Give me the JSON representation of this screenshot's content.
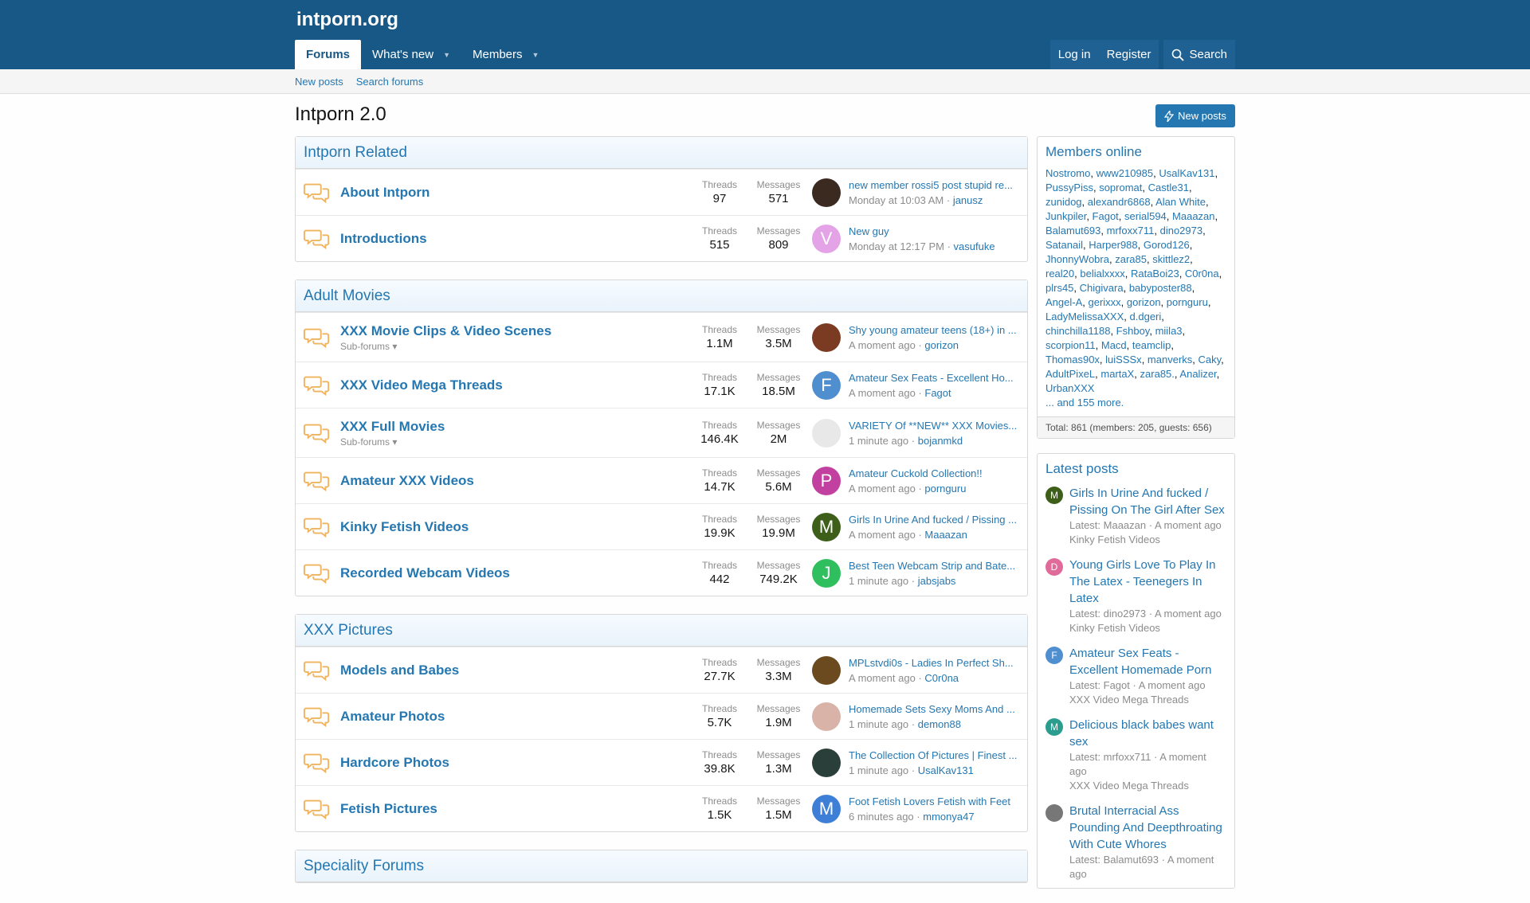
{
  "header": {
    "logo": "intporn.org",
    "nav": [
      {
        "label": "Forums"
      },
      {
        "label": "What's new"
      },
      {
        "label": "Members"
      }
    ],
    "login": "Log in",
    "register": "Register",
    "search": "Search"
  },
  "subnav": {
    "new_posts": "New posts",
    "search_forums": "Search forums"
  },
  "page": {
    "title": "Intporn 2.0",
    "new_posts_button": "New posts"
  },
  "labels": {
    "threads": "Threads",
    "messages": "Messages",
    "subforums": "Sub-forums"
  },
  "categories": [
    {
      "title": "Intporn Related",
      "forums": [
        {
          "title": "About Intporn",
          "threads": "97",
          "messages": "571",
          "last_title": "new member rossi5 post stupid re...",
          "last_time": "Monday at 10:03 AM",
          "last_user": "janusz",
          "avatar_letter": "",
          "avatar_color": "#3b2a20"
        },
        {
          "title": "Introductions",
          "threads": "515",
          "messages": "809",
          "last_title": "New guy",
          "last_time": "Monday at 12:17 PM",
          "last_user": "vasufuke",
          "avatar_letter": "V",
          "avatar_color": "#e4a3e6"
        }
      ]
    },
    {
      "title": "Adult Movies",
      "forums": [
        {
          "title": "XXX Movie Clips & Video Scenes",
          "sub": true,
          "threads": "1.1M",
          "messages": "3.5M",
          "last_title": "Shy young amateur teens (18+) in ...",
          "last_time": "A moment ago",
          "last_user": "gorizon",
          "avatar_letter": "",
          "avatar_color": "#7a3b22"
        },
        {
          "title": "XXX Video Mega Threads",
          "threads": "17.1K",
          "messages": "18.5M",
          "last_title": "Amateur Sex Feats - Excellent Ho...",
          "last_time": "A moment ago",
          "last_user": "Fagot",
          "avatar_letter": "F",
          "avatar_color": "#4f8fcf"
        },
        {
          "title": "XXX Full Movies",
          "sub": true,
          "threads": "146.4K",
          "messages": "2M",
          "last_title": "VARIETY Of **NEW** XXX Movies...",
          "last_time": "1 minute ago",
          "last_user": "bojanmkd",
          "avatar_letter": "",
          "avatar_color": "#e8e8e8"
        },
        {
          "title": "Amateur XXX Videos",
          "threads": "14.7K",
          "messages": "5.6M",
          "last_title": "Amateur Cuckold Collection!!",
          "last_time": "A moment ago",
          "last_user": "pornguru",
          "avatar_letter": "P",
          "avatar_color": "#c2409f"
        },
        {
          "title": "Kinky Fetish Videos",
          "threads": "19.9K",
          "messages": "19.9M",
          "last_title": "Girls In Urine And fucked / Pissing ...",
          "last_time": "A moment ago",
          "last_user": "Maaazan",
          "avatar_letter": "M",
          "avatar_color": "#3e5f1a"
        },
        {
          "title": "Recorded Webcam Videos",
          "threads": "442",
          "messages": "749.2K",
          "last_title": "Best Teen Webcam Strip and Bate...",
          "last_time": "1 minute ago",
          "last_user": "jabsjabs",
          "avatar_letter": "J",
          "avatar_color": "#2fbf5f"
        }
      ]
    },
    {
      "title": "XXX Pictures",
      "forums": [
        {
          "title": "Models and Babes",
          "threads": "27.7K",
          "messages": "3.3M",
          "last_title": "MPLstvdi0s - Ladies In Perfect Sh...",
          "last_time": "A moment ago",
          "last_user": "C0r0na",
          "avatar_letter": "",
          "avatar_color": "#6b4a1f"
        },
        {
          "title": "Amateur Photos",
          "threads": "5.7K",
          "messages": "1.9M",
          "last_title": "Homemade Sets Sexy Moms And ...",
          "last_time": "1 minute ago",
          "last_user": "demon88",
          "avatar_letter": "",
          "avatar_color": "#d9b3a8"
        },
        {
          "title": "Hardcore Photos",
          "threads": "39.8K",
          "messages": "1.3M",
          "last_title": "The Collection Of Pictures | Finest ...",
          "last_time": "1 minute ago",
          "last_user": "UsalKav131",
          "avatar_letter": "",
          "avatar_color": "#2b3f3a"
        },
        {
          "title": "Fetish Pictures",
          "threads": "1.5K",
          "messages": "1.5M",
          "last_title": "Foot Fetish Lovers Fetish with Feet",
          "last_time": "6 minutes ago",
          "last_user": "mmonya47",
          "avatar_letter": "M",
          "avatar_color": "#3d7fd6"
        }
      ]
    },
    {
      "title": "Speciality Forums",
      "forums": []
    }
  ],
  "sidebar": {
    "members_title": "Members online",
    "members": [
      "Nostromo",
      "www210985",
      "UsalKav131",
      "PussyPiss",
      "sopromat",
      "Castle31",
      "zunidog",
      "alexandr6868",
      "Alan White",
      "Junkpiler",
      "Fagot",
      "serial594",
      "Maaazan",
      "Balamut693",
      "mrfoxx711",
      "dino2973",
      "Satanail",
      "Harper988",
      "Gorod126",
      "JhonnyWobra",
      "zara85",
      "skittlez2",
      "real20",
      "belialxxxx",
      "RataBoi23",
      "C0r0na",
      "plrs45",
      "Chigivara",
      "babyposter88",
      "Angel-A",
      "gerixxx",
      "gorizon",
      "pornguru",
      "LadyMelissaXXX",
      "d.dgeri",
      "chinchilla1188",
      "Fshboy",
      "miila3",
      "scorpion11",
      "Macd",
      "teamclip",
      "Thomas90x",
      "luiSSSx",
      "manverks",
      "Caky",
      "AdultPixeL",
      "martaX",
      "zara85.",
      "Analizer",
      "UrbanXXX"
    ],
    "more": "... and 155 more.",
    "total": "Total: 861 (members: 205, guests: 656)",
    "latest_title": "Latest posts",
    "latest": [
      {
        "title": "Girls In Urine And fucked / Pissing On The Girl After Sex",
        "meta": "Latest: Maaazan · A moment ago",
        "forum": "Kinky Fetish Videos",
        "letter": "M",
        "color": "#3e5f1a"
      },
      {
        "title": "Young Girls Love To Play In The Latex - Teenegers In Latex",
        "meta": "Latest: dino2973 · A moment ago",
        "forum": "Kinky Fetish Videos",
        "letter": "D",
        "color": "#e06a9a"
      },
      {
        "title": "Amateur Sex Feats - Excellent Homemade Porn",
        "meta": "Latest: Fagot · A moment ago",
        "forum": "XXX Video Mega Threads",
        "letter": "F",
        "color": "#4f8fcf"
      },
      {
        "title": "Delicious black babes want sex",
        "meta": "Latest: mrfoxx711 · A moment ago",
        "forum": "XXX Video Mega Threads",
        "letter": "M",
        "color": "#2a9d8f"
      },
      {
        "title": "Brutal Interracial Ass Pounding And Deepthroating With Cute Whores",
        "meta": "Latest: Balamut693 · A moment ago",
        "forum": "",
        "letter": "",
        "color": "#777777"
      }
    ]
  }
}
